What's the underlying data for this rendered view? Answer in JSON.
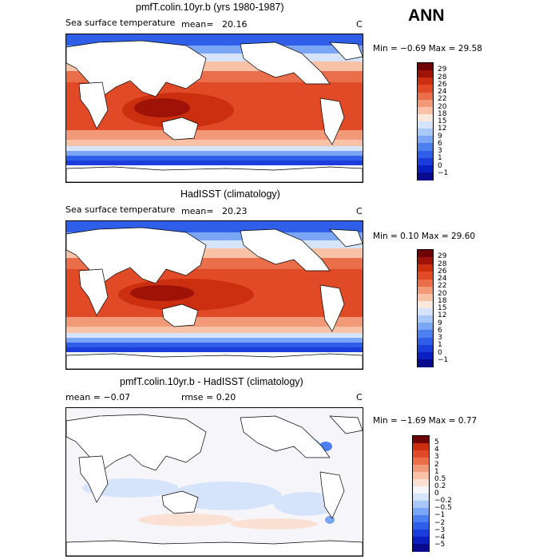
{
  "season": "ANN",
  "panels": [
    {
      "title": "pmfT.colin.10yr.b (yrs 1980-1987)",
      "variable": "Sea surface temperature",
      "mean_label": "mean=",
      "mean_value": "20.16",
      "unit": "C",
      "min_max": "Min =  −0.69 Max =   29.58",
      "colorbar_labels": [
        "29",
        "28",
        "26",
        "24",
        "22",
        "20",
        "18",
        "15",
        "12",
        "9",
        "6",
        "3",
        "1",
        "0",
        "−1"
      ]
    },
    {
      "title": "HadISST (climatology)",
      "variable": "Sea surface temperature",
      "mean_label": "mean=",
      "mean_value": "20.23",
      "unit": "C",
      "min_max": "Min =   0.10 Max =   29.60",
      "colorbar_labels": [
        "29",
        "28",
        "26",
        "24",
        "22",
        "20",
        "18",
        "15",
        "12",
        "9",
        "6",
        "3",
        "1",
        "0",
        "−1"
      ]
    },
    {
      "title": "pmfT.colin.10yr.b - HadISST (climatology)",
      "mean_text": "mean =  −0.07",
      "rmse_text": "rmse =   0.20",
      "unit": "C",
      "min_max": "Min =  −1.69 Max =   0.77",
      "colorbar_labels": [
        "5",
        "4",
        "3",
        "2",
        "1",
        "0.5",
        "0.2",
        "0",
        "−0.2",
        "−0.5",
        "−1",
        "−2",
        "−3",
        "−4",
        "−5"
      ]
    }
  ],
  "colors": {
    "sst_scale": [
      "#0a0a8c",
      "#0a1fbf",
      "#1a3ddb",
      "#2f5fe8",
      "#4c7ff0",
      "#7aa6f5",
      "#a9c8fa",
      "#d6e4fb",
      "#fbe8dc",
      "#f8c2a6",
      "#f29a78",
      "#ea6e49",
      "#e04a26",
      "#cc2e10",
      "#9e1208",
      "#6e0404"
    ],
    "diff_scale": [
      "#0a0a8c",
      "#0a1fbf",
      "#1a3ddb",
      "#2f5fe8",
      "#4c7ff0",
      "#7aa6f5",
      "#a9c8fa",
      "#d6e4fb",
      "#f6f6fa",
      "#fbe1d3",
      "#f8c2a6",
      "#f29a78",
      "#ea6e49",
      "#e04a26",
      "#cc2e10",
      "#6e0404"
    ],
    "land": "#ffffff"
  }
}
